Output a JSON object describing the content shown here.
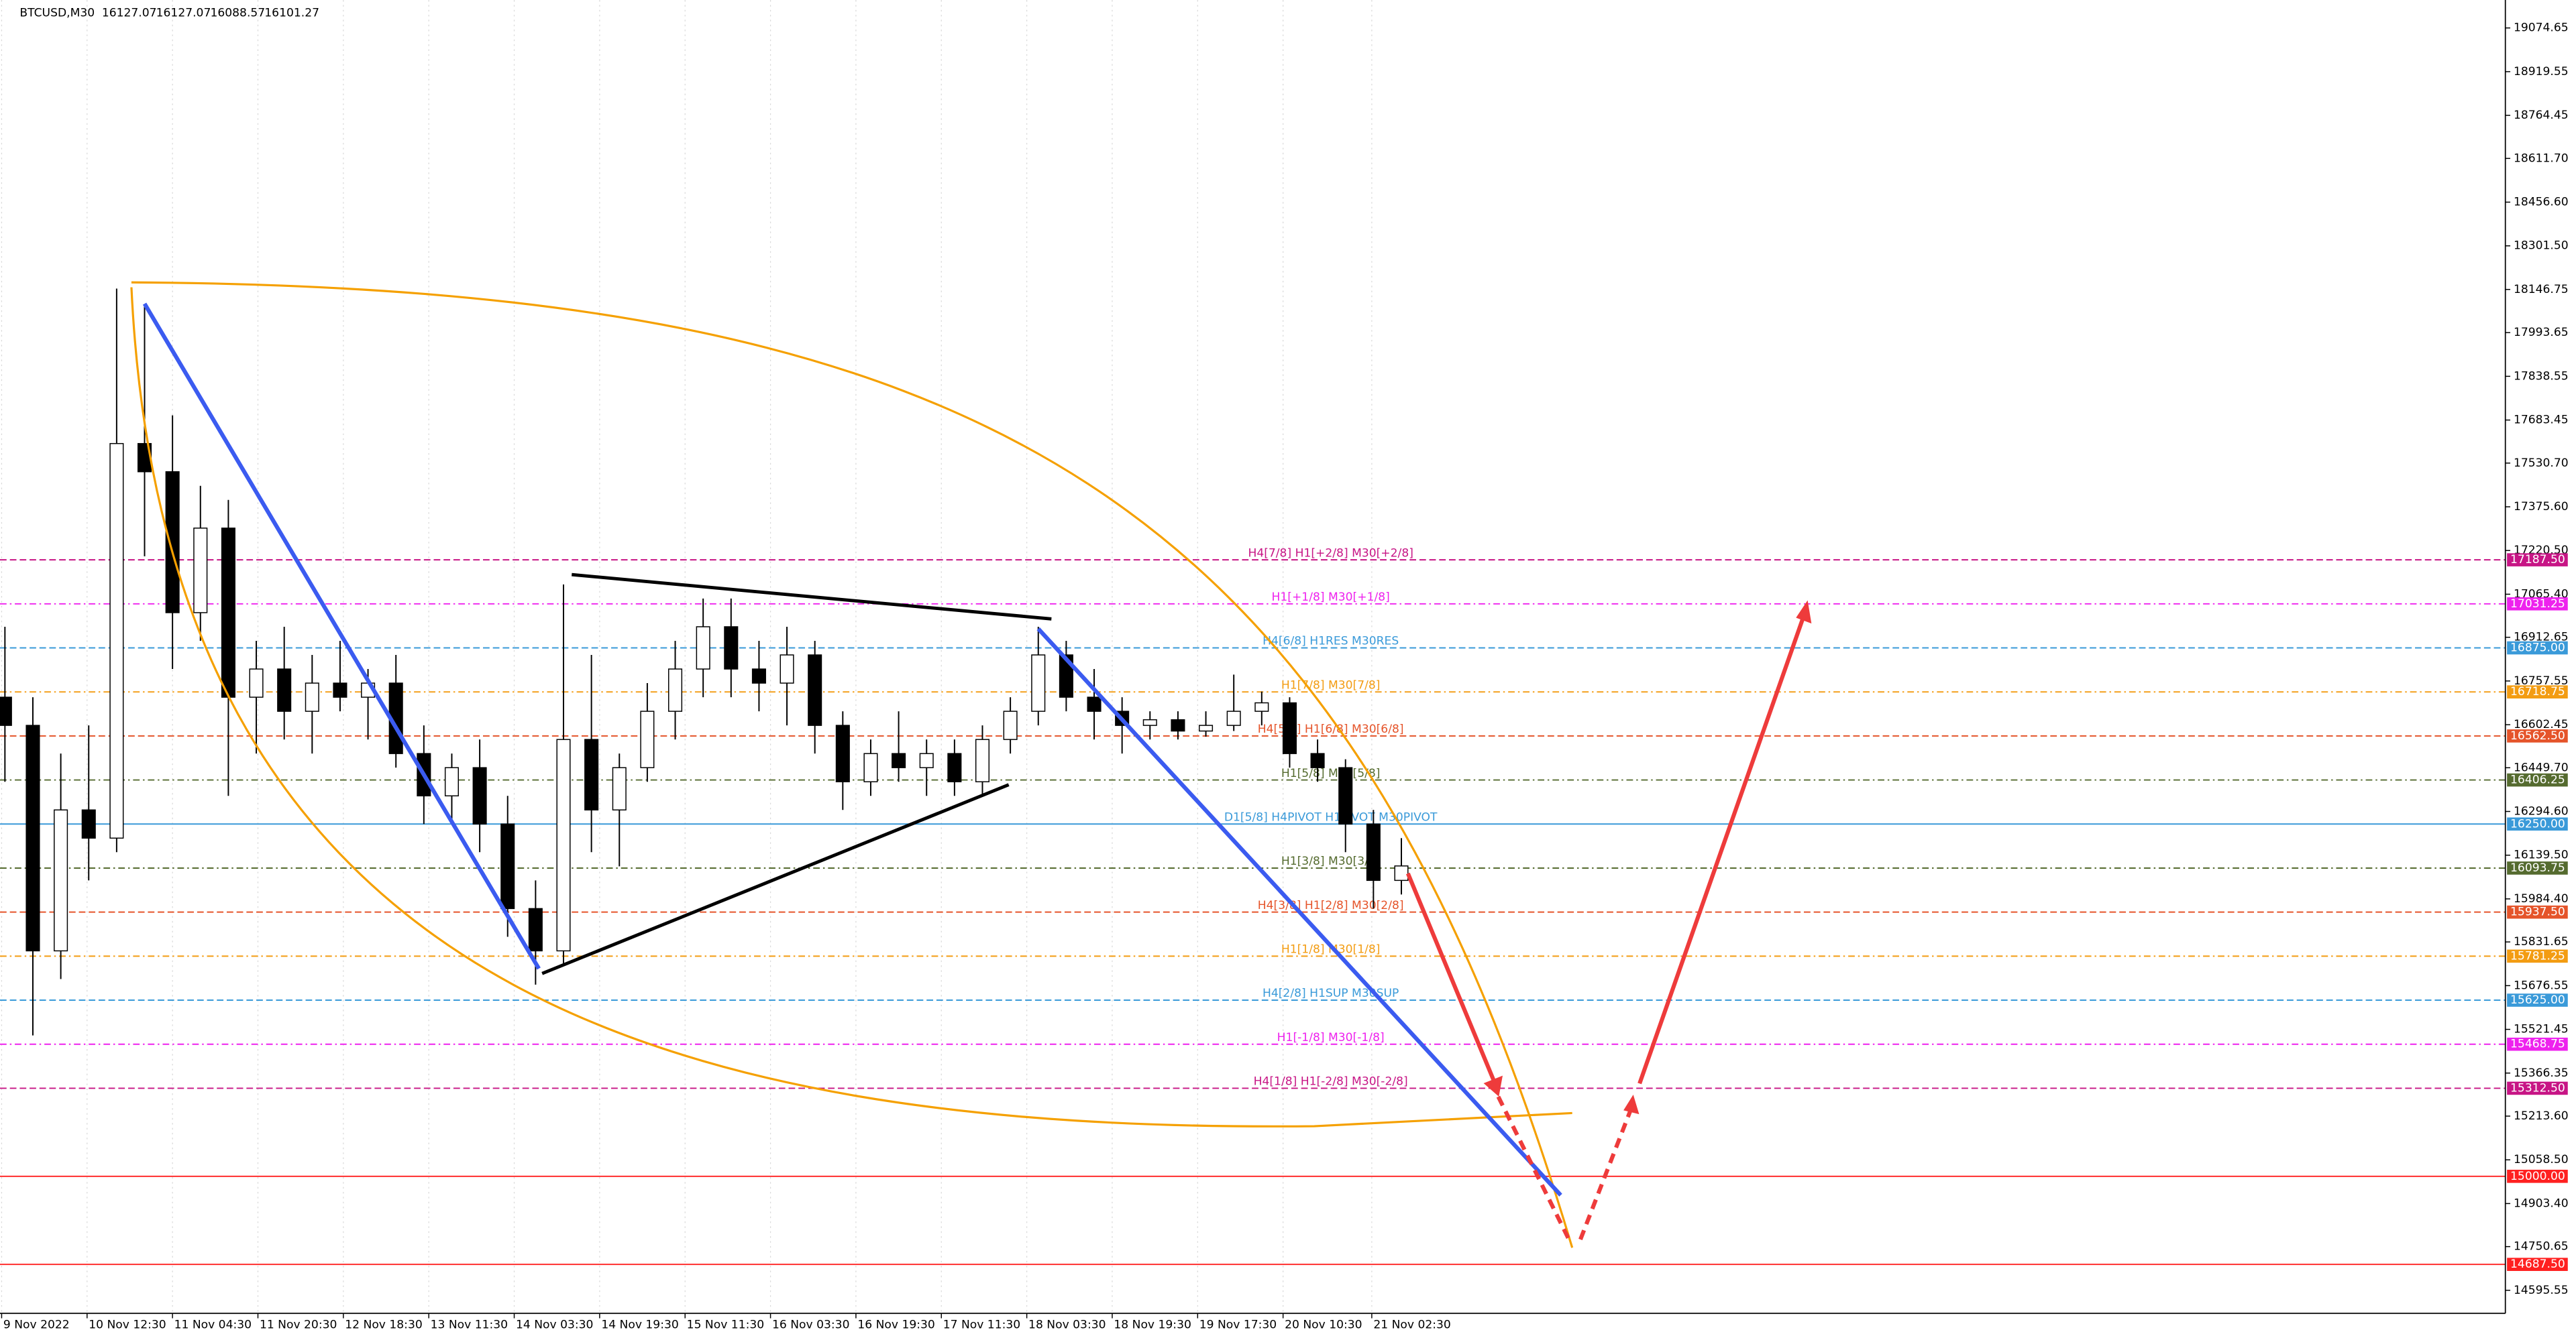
{
  "chart_data": {
    "type": "candlestick",
    "title": "BTCUSD,M30",
    "ohlc_values": [
      16127.07,
      16127.07,
      16088.57,
      16101.27
    ],
    "categories": [
      "9 Nov 2022",
      "10 Nov 12:30",
      "11 Nov 04:30",
      "11 Nov 20:30",
      "12 Nov 18:30",
      "13 Nov 11:30",
      "14 Nov 03:30",
      "14 Nov 19:30",
      "15 Nov 11:30",
      "16 Nov 03:30",
      "16 Nov 19:30",
      "17 Nov 11:30",
      "18 Nov 03:30",
      "18 Nov 19:30",
      "19 Nov 17:30",
      "20 Nov 10:30",
      "21 Nov 02:30"
    ],
    "ylim": [
      14513.8,
      19173.7
    ],
    "yticks": [
      19074.65,
      18919.55,
      18764.45,
      {
        "value": 18611.7,
        "label": "18611.70"
      },
      {
        "value": 18456.6,
        "label": "18456.60"
      },
      {
        "value": 18301.5,
        "label": "18301.50"
      },
      18146.75,
      17993.65,
      17838.55,
      17683.45,
      {
        "value": 17530.7,
        "label": "17530.70"
      },
      {
        "value": 17375.6,
        "label": "17375.60"
      },
      {
        "value": 17220.5,
        "label": "17220.50"
      },
      {
        "value": 17065.4,
        "label": "17065.40"
      },
      16912.65,
      16757.55,
      16602.45,
      {
        "value": 16449.7,
        "label": "16449.70"
      },
      {
        "value": 16294.6,
        "label": "16294.60"
      },
      {
        "value": 16139.5,
        "label": "16139.50"
      },
      {
        "value": 15984.4,
        "label": "15984.40"
      },
      15831.65,
      15676.55,
      15521.45,
      15366.35,
      {
        "value": 15213.6,
        "label": "15213.60"
      },
      {
        "value": 15058.5,
        "label": "15058.50"
      },
      {
        "value": 14903.4,
        "label": "14903.40"
      },
      14750.65,
      14595.55
    ],
    "candles": {
      "up_color": "#ffffff",
      "down_color": "#000000",
      "open": [
        16700,
        16600,
        15800,
        16300,
        16200,
        17600,
        17500,
        17000,
        17300,
        16700,
        16800,
        16650,
        16750,
        16700,
        16750,
        16500,
        16350,
        16450,
        16250,
        15950,
        15800,
        16550,
        16300,
        16450,
        16650,
        16800,
        16950,
        16800,
        16750,
        16850,
        16600,
        16400,
        16500,
        16450,
        16500,
        16400,
        16550,
        16650,
        16850,
        16700,
        16650,
        16600,
        16620,
        16580,
        16600,
        16650,
        16680,
        16500,
        16450,
        16250,
        16050
      ],
      "high": [
        16950,
        16700,
        16500,
        16600,
        18150,
        18090,
        17700,
        17450,
        17400,
        16900,
        16950,
        16850,
        16900,
        16800,
        16850,
        16600,
        16500,
        16550,
        16350,
        16050,
        17100,
        16850,
        16500,
        16750,
        16900,
        17050,
        17050,
        16900,
        16950,
        16900,
        16650,
        16550,
        16650,
        16550,
        16550,
        16600,
        16700,
        16950,
        16900,
        16800,
        16700,
        16650,
        16650,
        16650,
        16780,
        16720,
        16700,
        16550,
        16480,
        16300,
        16200
      ],
      "low": [
        16400,
        15500,
        15700,
        16050,
        16150,
        17200,
        16800,
        16900,
        16350,
        16500,
        16550,
        16500,
        16650,
        16550,
        16450,
        16250,
        16250,
        16150,
        15850,
        15680,
        15750,
        16150,
        16100,
        16400,
        16550,
        16700,
        16700,
        16650,
        16600,
        16500,
        16300,
        16350,
        16400,
        16350,
        16350,
        16350,
        16500,
        16600,
        16650,
        16550,
        16500,
        16550,
        16550,
        16560,
        16580,
        16600,
        16450,
        16400,
        16150,
        15950,
        16000
      ],
      "close": [
        16600,
        15800,
        16300,
        16200,
        17600,
        17500,
        17000,
        17300,
        16700,
        16800,
        16650,
        16750,
        16700,
        16750,
        16500,
        16350,
        16450,
        16250,
        15950,
        15800,
        16550,
        16300,
        16450,
        16650,
        16800,
        16950,
        16800,
        16750,
        16850,
        16600,
        16400,
        16500,
        16450,
        16500,
        16400,
        16550,
        16650,
        16850,
        16700,
        16650,
        16600,
        16620,
        16580,
        16600,
        16650,
        16680,
        16500,
        16450,
        16250,
        16050,
        16101.27
      ]
    },
    "levels": [
      {
        "price": {
          "value": 17187.5,
          "label": "17187.50"
        },
        "text": "H4[7/8] H1[+2/8] M30[+2/8]",
        "color": "#c71585",
        "dash": "4 2"
      },
      {
        "price": {
          "value": 17031.25,
          "label": "17031.25"
        },
        "text": "H1[+1/8] M30[+1/8]",
        "color": "#ee22ee",
        "dash": "4 2 1 2"
      },
      {
        "price": {
          "value": 16875,
          "label": "16875.00"
        },
        "text": "H4[6/8] H1RES M30RES",
        "color": "#3a9ad9",
        "dash": "4 2"
      },
      {
        "price": {
          "value": 16718.75,
          "label": "16718.75"
        },
        "text": "H1[7/8] M30[7/8]",
        "color": "#f39c12",
        "dash": "4 2 1 2"
      },
      {
        "price": {
          "value": 16562.5,
          "label": "16562.50"
        },
        "text": "H4[5/8] H1[6/8] M30[6/8]",
        "color": "#e5542a",
        "dash": "4 2"
      },
      {
        "price": {
          "value": 16406.25,
          "label": "16406.25"
        },
        "text": "H1[5/8] M30[5/8]",
        "color": "#556b2f",
        "dash": "4 2 1 2"
      },
      {
        "price": {
          "value": 16250,
          "label": "16250.00"
        },
        "text": "D1[5/8] H4PIVOT H1PIVOT M30PIVOT",
        "color": "#3a9ad9",
        "dash": "none"
      },
      {
        "price": {
          "value": 16093.75,
          "label": "16093.75"
        },
        "text": "H1[3/8] M30[3/8]",
        "color": "#556b2f",
        "dash": "4 2 1 2"
      },
      {
        "price": {
          "value": 15937.5,
          "label": "15937.50"
        },
        "text": "H4[3/8] H1[2/8] M30[2/8]",
        "color": "#e5542a",
        "dash": "4 2"
      },
      {
        "price": {
          "value": 15781.25,
          "label": "15781.25"
        },
        "text": "H1[1/8] M30[1/8]",
        "color": "#f39c12",
        "dash": "4 2 1 2"
      },
      {
        "price": {
          "value": 15625,
          "label": "15625.00"
        },
        "text": "H4[2/8] H1SUP M30SUP",
        "color": "#3a9ad9",
        "dash": "4 2"
      },
      {
        "price": {
          "value": 15468.75,
          "label": "15468.75"
        },
        "text": "H1[-1/8] M30[-1/8]",
        "color": "#ee22ee",
        "dash": "4 2 1 2"
      },
      {
        "price": {
          "value": 15312.5,
          "label": "15312.50"
        },
        "text": "H4[1/8] H1[-2/8] M30[-2/8]",
        "color": "#c71585",
        "dash": "4 2"
      },
      {
        "price": {
          "value": 15000,
          "label": "15000.00"
        },
        "color": "#ff2020",
        "dash": "none"
      },
      {
        "price": {
          "value": 14687.5,
          "label": "14687.50"
        },
        "color": "#ff2020",
        "dash": "none"
      }
    ]
  }
}
